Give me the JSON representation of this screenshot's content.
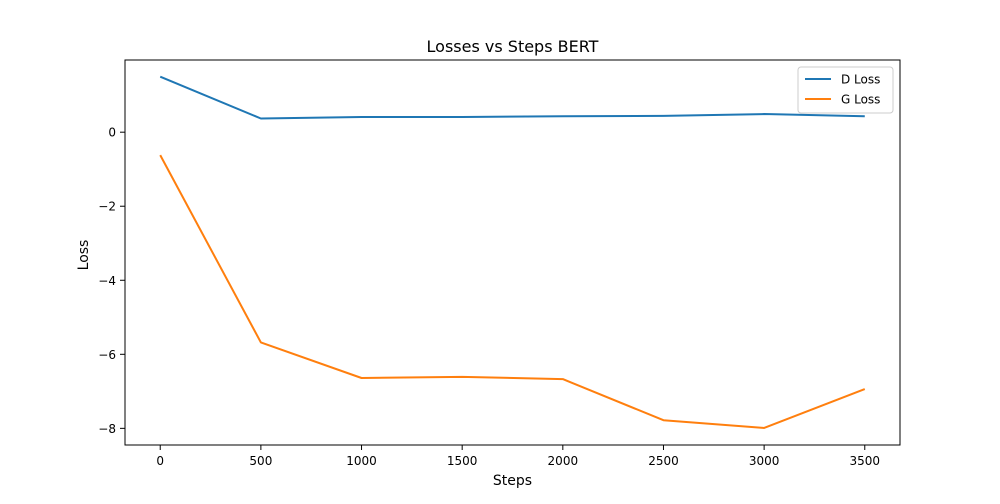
{
  "chart_data": {
    "type": "line",
    "title": "Losses vs Steps BERT",
    "xlabel": "Steps",
    "ylabel": "Loss",
    "x": [
      0,
      500,
      1000,
      1500,
      2000,
      2500,
      3000,
      3500
    ],
    "series": [
      {
        "name": "D Loss",
        "color": "#1f77b4",
        "values": [
          1.5,
          0.37,
          0.41,
          0.41,
          0.43,
          0.44,
          0.49,
          0.43
        ]
      },
      {
        "name": "G Loss",
        "color": "#ff7f0e",
        "values": [
          -0.62,
          -5.68,
          -6.64,
          -6.61,
          -6.67,
          -7.78,
          -7.99,
          -6.94
        ]
      }
    ],
    "xlim": [
      -175,
      3675
    ],
    "ylim": [
      -8.45,
      1.95
    ],
    "xticks": [
      0,
      500,
      1000,
      1500,
      2000,
      2500,
      3000,
      3500
    ],
    "yticks": [
      0,
      -2,
      -4,
      -6,
      -8
    ],
    "ytick_labels": [
      "0",
      "−2",
      "−4",
      "−6",
      "−8"
    ],
    "grid": false,
    "legend_position": "top-right"
  }
}
